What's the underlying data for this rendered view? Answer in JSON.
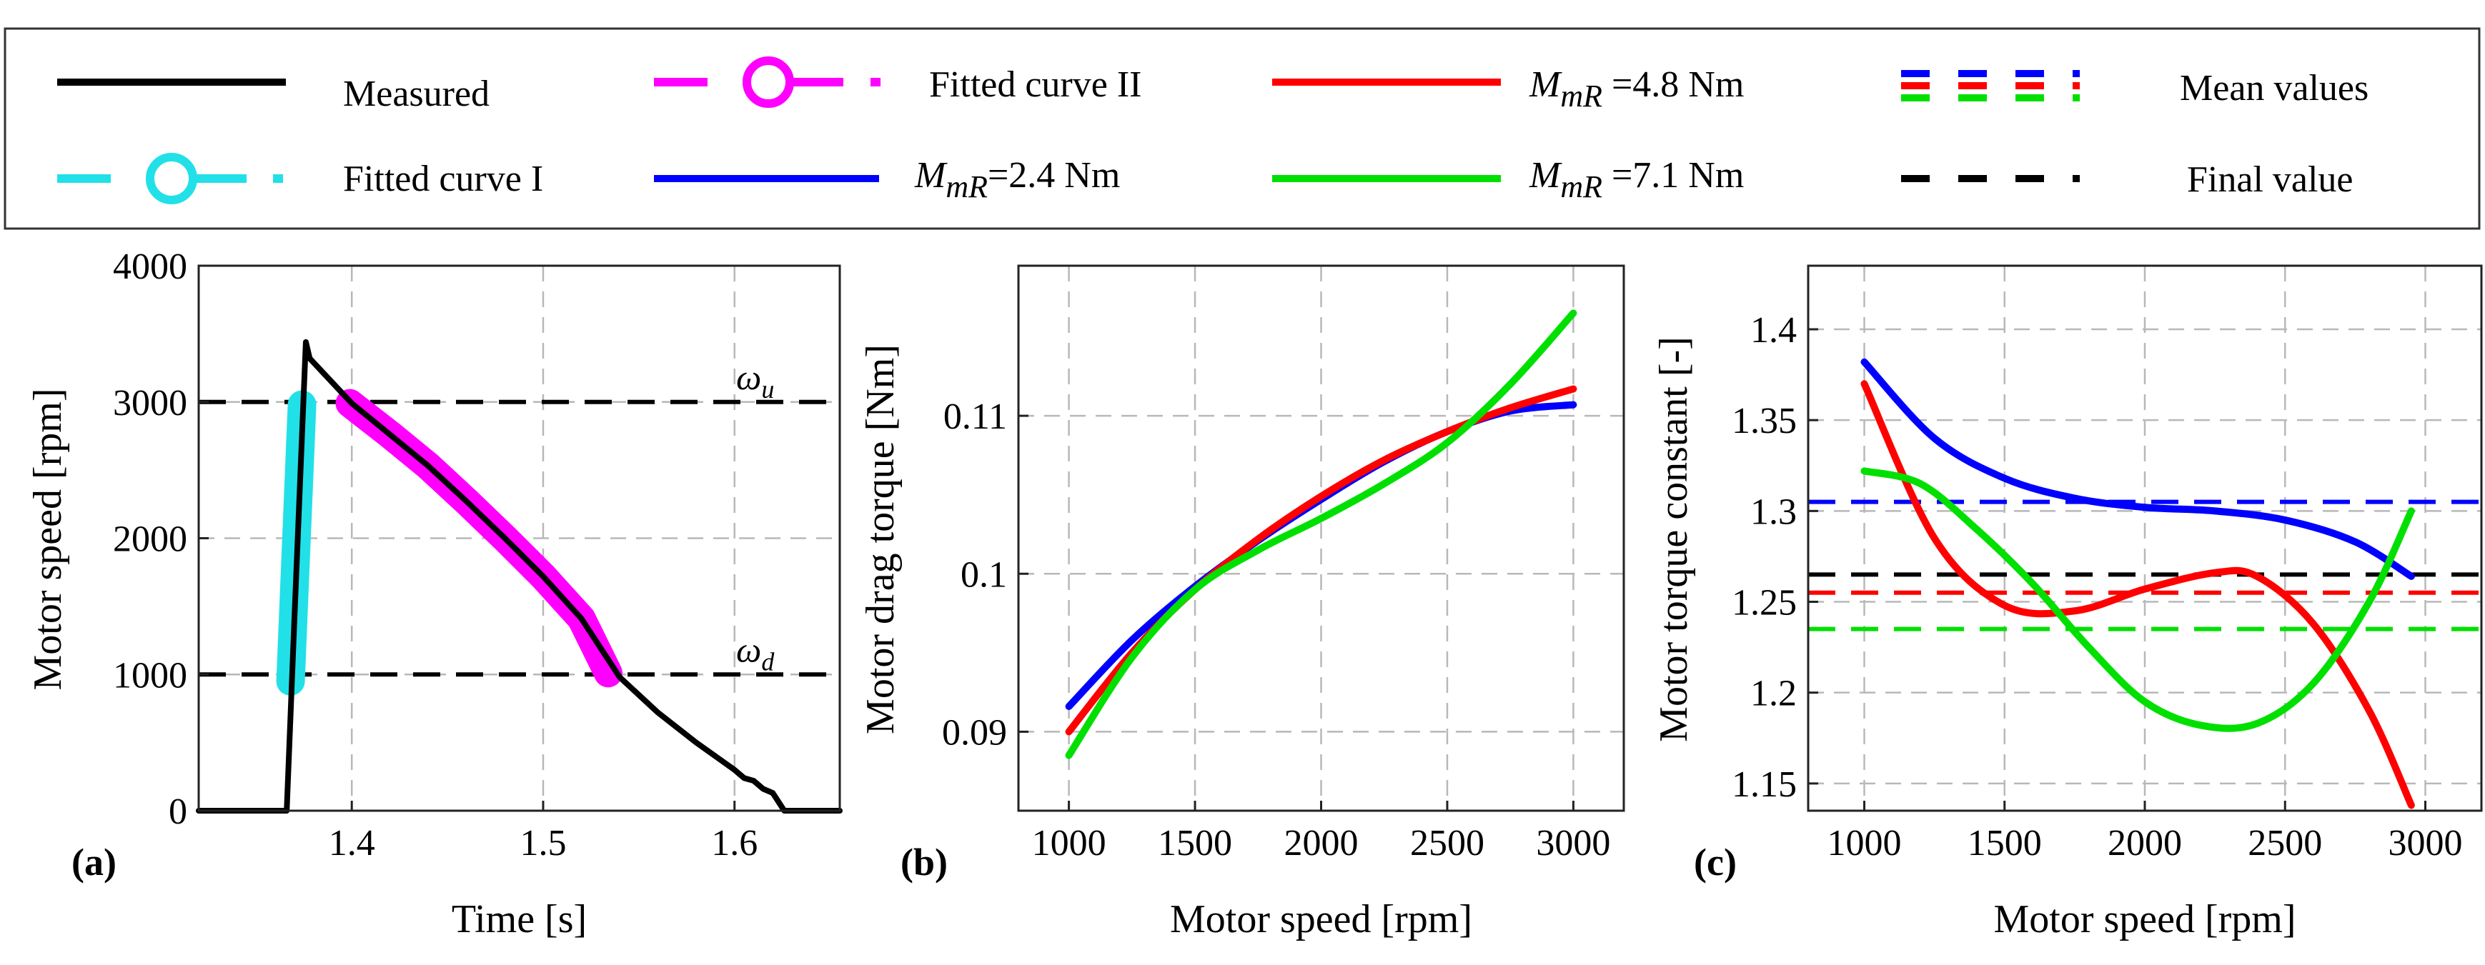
{
  "legend": {
    "items": [
      {
        "label": "Measured",
        "color": "#000000",
        "style": "solid"
      },
      {
        "label": "Fitted curve I",
        "color": "#22e0e8",
        "style": "dashdot-marker"
      },
      {
        "label": "Fitted curve II",
        "color": "#ff00ff",
        "style": "dashdot-marker"
      },
      {
        "label_sym": "M",
        "label_sub": "mR",
        "label_val": "=2.4 Nm",
        "color": "#0000ff",
        "style": "solid"
      },
      {
        "label_sym": "M",
        "label_sub": "mR",
        "label_val": " =4.8 Nm",
        "color": "#ff0000",
        "style": "solid"
      },
      {
        "label_sym": "M",
        "label_sub": "mR",
        "label_val": " =7.1 Nm",
        "color": "#00e000",
        "style": "solid"
      },
      {
        "label": "Mean values",
        "colors": [
          "#0000ff",
          "#ff0000",
          "#00e000"
        ],
        "style": "dashed"
      },
      {
        "label": "Final value",
        "color": "#000000",
        "style": "dashed"
      }
    ]
  },
  "chart_data": [
    {
      "type": "line",
      "panel_label": "(a)",
      "xlabel": "Time [s]",
      "ylabel": "Motor speed [rpm]",
      "xlim": [
        1.32,
        1.655
      ],
      "ylim": [
        0,
        4000
      ],
      "xticks": [
        1.4,
        1.5,
        1.6
      ],
      "xtick_labels": [
        "1.4",
        "1.5",
        "1.6"
      ],
      "yticks": [
        0,
        1000,
        2000,
        3000,
        4000
      ],
      "ytick_labels": [
        "0",
        "1000",
        "2000",
        "3000",
        "4000"
      ],
      "grid": true,
      "hlines": [
        {
          "y": 3000,
          "label_sym": "ω",
          "label_sub": "u",
          "color": "#000000"
        },
        {
          "y": 1000,
          "label_sym": "ω",
          "label_sub": "d",
          "color": "#000000"
        }
      ],
      "series": [
        {
          "name": "Fitted curve I",
          "color": "#22e0e8",
          "x": [
            1.368,
            1.374
          ],
          "y": [
            950,
            2980
          ]
        },
        {
          "name": "Fitted curve II",
          "color": "#ff00ff",
          "x": [
            1.399,
            1.42,
            1.44,
            1.46,
            1.48,
            1.5,
            1.52,
            1.534
          ],
          "y": [
            2990,
            2760,
            2530,
            2270,
            2000,
            1720,
            1410,
            1010
          ]
        },
        {
          "name": "Measured",
          "color": "#000000",
          "x": [
            1.32,
            1.366,
            1.37,
            1.376,
            1.378,
            1.4,
            1.42,
            1.44,
            1.46,
            1.48,
            1.5,
            1.52,
            1.54,
            1.56,
            1.58,
            1.6,
            1.605,
            1.61,
            1.615,
            1.62,
            1.626,
            1.655
          ],
          "y": [
            0,
            0,
            1400,
            3440,
            3320,
            2990,
            2760,
            2530,
            2270,
            2000,
            1720,
            1410,
            980,
            720,
            500,
            300,
            240,
            220,
            160,
            130,
            0,
            0
          ]
        }
      ]
    },
    {
      "type": "line",
      "panel_label": "(b)",
      "xlabel": "Motor speed [rpm]",
      "ylabel": "Motor drag torque [Nm]",
      "xlim": [
        800,
        3200
      ],
      "ylim": [
        0.085,
        0.1195
      ],
      "xticks": [
        1000,
        1500,
        2000,
        2500,
        3000
      ],
      "xtick_labels": [
        "1000",
        "1500",
        "2000",
        "2500",
        "3000"
      ],
      "yticks": [
        0.09,
        0.1,
        0.11
      ],
      "ytick_labels": [
        "0.09",
        "0.1",
        "0.11"
      ],
      "grid": true,
      "series": [
        {
          "name": "M_mR=2.4 Nm",
          "color": "#0000ff",
          "x": [
            1000,
            1250,
            1500,
            1750,
            2000,
            2250,
            2500,
            2750,
            3000
          ],
          "y": [
            0.0916,
            0.0958,
            0.0992,
            0.1021,
            0.1047,
            0.1071,
            0.109,
            0.1103,
            0.1107
          ]
        },
        {
          "name": "M_mR=4.8 Nm",
          "color": "#ff0000",
          "x": [
            1000,
            1250,
            1500,
            1750,
            2000,
            2250,
            2500,
            2750,
            3000
          ],
          "y": [
            0.09,
            0.095,
            0.099,
            0.1022,
            0.1049,
            0.1072,
            0.109,
            0.1105,
            0.1117
          ]
        },
        {
          "name": "M_mR=7.1 Nm",
          "color": "#00e000",
          "x": [
            1000,
            1250,
            1500,
            1750,
            2000,
            2250,
            2500,
            2750,
            3000
          ],
          "y": [
            0.0885,
            0.0947,
            0.099,
            0.1015,
            0.1035,
            0.1057,
            0.1083,
            0.112,
            0.1165
          ]
        }
      ]
    },
    {
      "type": "line",
      "panel_label": "(c)",
      "xlabel": "Motor speed [rpm]",
      "ylabel": "Motor torque constant [-]",
      "xlim": [
        800,
        3200
      ],
      "ylim": [
        1.135,
        1.435
      ],
      "xticks": [
        1000,
        1500,
        2000,
        2500,
        3000
      ],
      "xtick_labels": [
        "1000",
        "1500",
        "2000",
        "2500",
        "3000"
      ],
      "yticks": [
        1.15,
        1.2,
        1.25,
        1.3,
        1.35,
        1.4
      ],
      "ytick_labels": [
        "1.15",
        "1.2",
        "1.25",
        "1.3",
        "1.35",
        "1.4"
      ],
      "grid": true,
      "hlines": [
        {
          "y": 1.305,
          "color": "#0000ff"
        },
        {
          "y": 1.265,
          "color": "#000000"
        },
        {
          "y": 1.255,
          "color": "#ff0000"
        },
        {
          "y": 1.235,
          "color": "#00e000"
        }
      ],
      "series": [
        {
          "name": "M_mR=2.4 Nm",
          "color": "#0000ff",
          "x": [
            1000,
            1250,
            1500,
            1750,
            2000,
            2250,
            2500,
            2750,
            2950
          ],
          "y": [
            1.382,
            1.34,
            1.318,
            1.307,
            1.302,
            1.3,
            1.295,
            1.283,
            1.264
          ]
        },
        {
          "name": "M_mR=4.8 Nm",
          "color": "#ff0000",
          "x": [
            1000,
            1250,
            1500,
            1750,
            2000,
            2250,
            2400,
            2600,
            2800,
            2950
          ],
          "y": [
            1.37,
            1.285,
            1.248,
            1.245,
            1.257,
            1.266,
            1.264,
            1.238,
            1.19,
            1.138
          ]
        },
        {
          "name": "M_mR=7.1 Nm",
          "color": "#00e000",
          "x": [
            1000,
            1200,
            1400,
            1600,
            1800,
            2000,
            2200,
            2400,
            2600,
            2800,
            2950
          ],
          "y": [
            1.322,
            1.315,
            1.29,
            1.26,
            1.225,
            1.195,
            1.182,
            1.183,
            1.205,
            1.25,
            1.3
          ]
        }
      ]
    }
  ]
}
